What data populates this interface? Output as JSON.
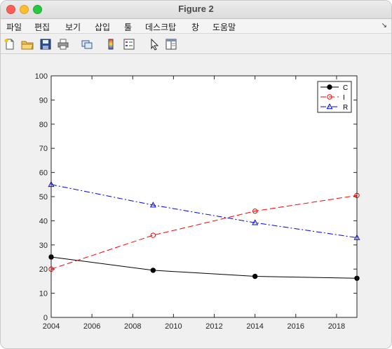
{
  "window": {
    "title": "Figure 2"
  },
  "menu": {
    "items": [
      "파일",
      "편집",
      "보기",
      "삽입",
      "툴",
      "데스크탑",
      "창",
      "도움말"
    ],
    "overflow_icon": "dock-arrow-icon"
  },
  "toolbar": {
    "icons": [
      "new-figure-icon",
      "open-file-icon",
      "save-icon",
      "print-icon",
      "link-plot-icon",
      "colorbar-icon",
      "legend-icon",
      "pointer-icon",
      "property-editor-icon"
    ]
  },
  "chart_data": {
    "type": "line",
    "xlim": [
      2004,
      2019
    ],
    "ylim": [
      0,
      100
    ],
    "xticks": [
      2004,
      2006,
      2008,
      2010,
      2012,
      2014,
      2016,
      2018
    ],
    "yticks": [
      0,
      10,
      20,
      30,
      40,
      50,
      60,
      70,
      80,
      90,
      100
    ],
    "x": [
      2004,
      2009,
      2014,
      2019
    ],
    "series": [
      {
        "name": "C",
        "values": [
          25,
          19.5,
          17,
          16.2
        ],
        "color": "#000000",
        "dash": "solid",
        "marker": "filled-circle"
      },
      {
        "name": "I",
        "values": [
          20,
          34,
          44,
          50.5
        ],
        "color": "#ff0000",
        "dash": "dashed",
        "marker": "open-circle"
      },
      {
        "name": "R",
        "values": [
          55,
          46.5,
          39.2,
          33
        ],
        "color": "#0000ff",
        "dash": "dash-dot",
        "marker": "open-triangle"
      }
    ],
    "legend": {
      "placement": "top-right"
    },
    "grid": false
  }
}
